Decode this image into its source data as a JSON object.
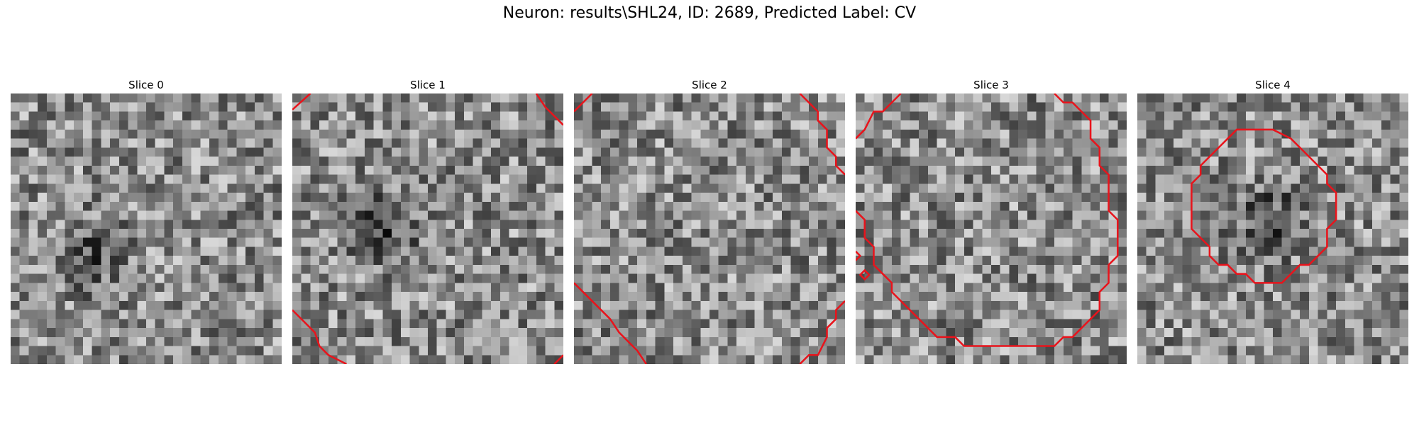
{
  "figure": {
    "title": "Neuron: results\\SHL24, ID: 2689, Predicted Label: CV"
  },
  "contour_color": "#e8141c",
  "slices": [
    {
      "label": "Slice 0",
      "seed": 11,
      "dark_spot": [
        0.27,
        0.6
      ]
    },
    {
      "label": "Slice 1",
      "seed": 23,
      "dark_spot": [
        0.32,
        0.48
      ]
    },
    {
      "label": "Slice 2",
      "seed": 37,
      "dark_spot": null
    },
    {
      "label": "Slice 3",
      "seed": 41,
      "dark_spot": null
    },
    {
      "label": "Slice 4",
      "seed": 53,
      "dark_spot": [
        0.48,
        0.45
      ]
    }
  ]
}
